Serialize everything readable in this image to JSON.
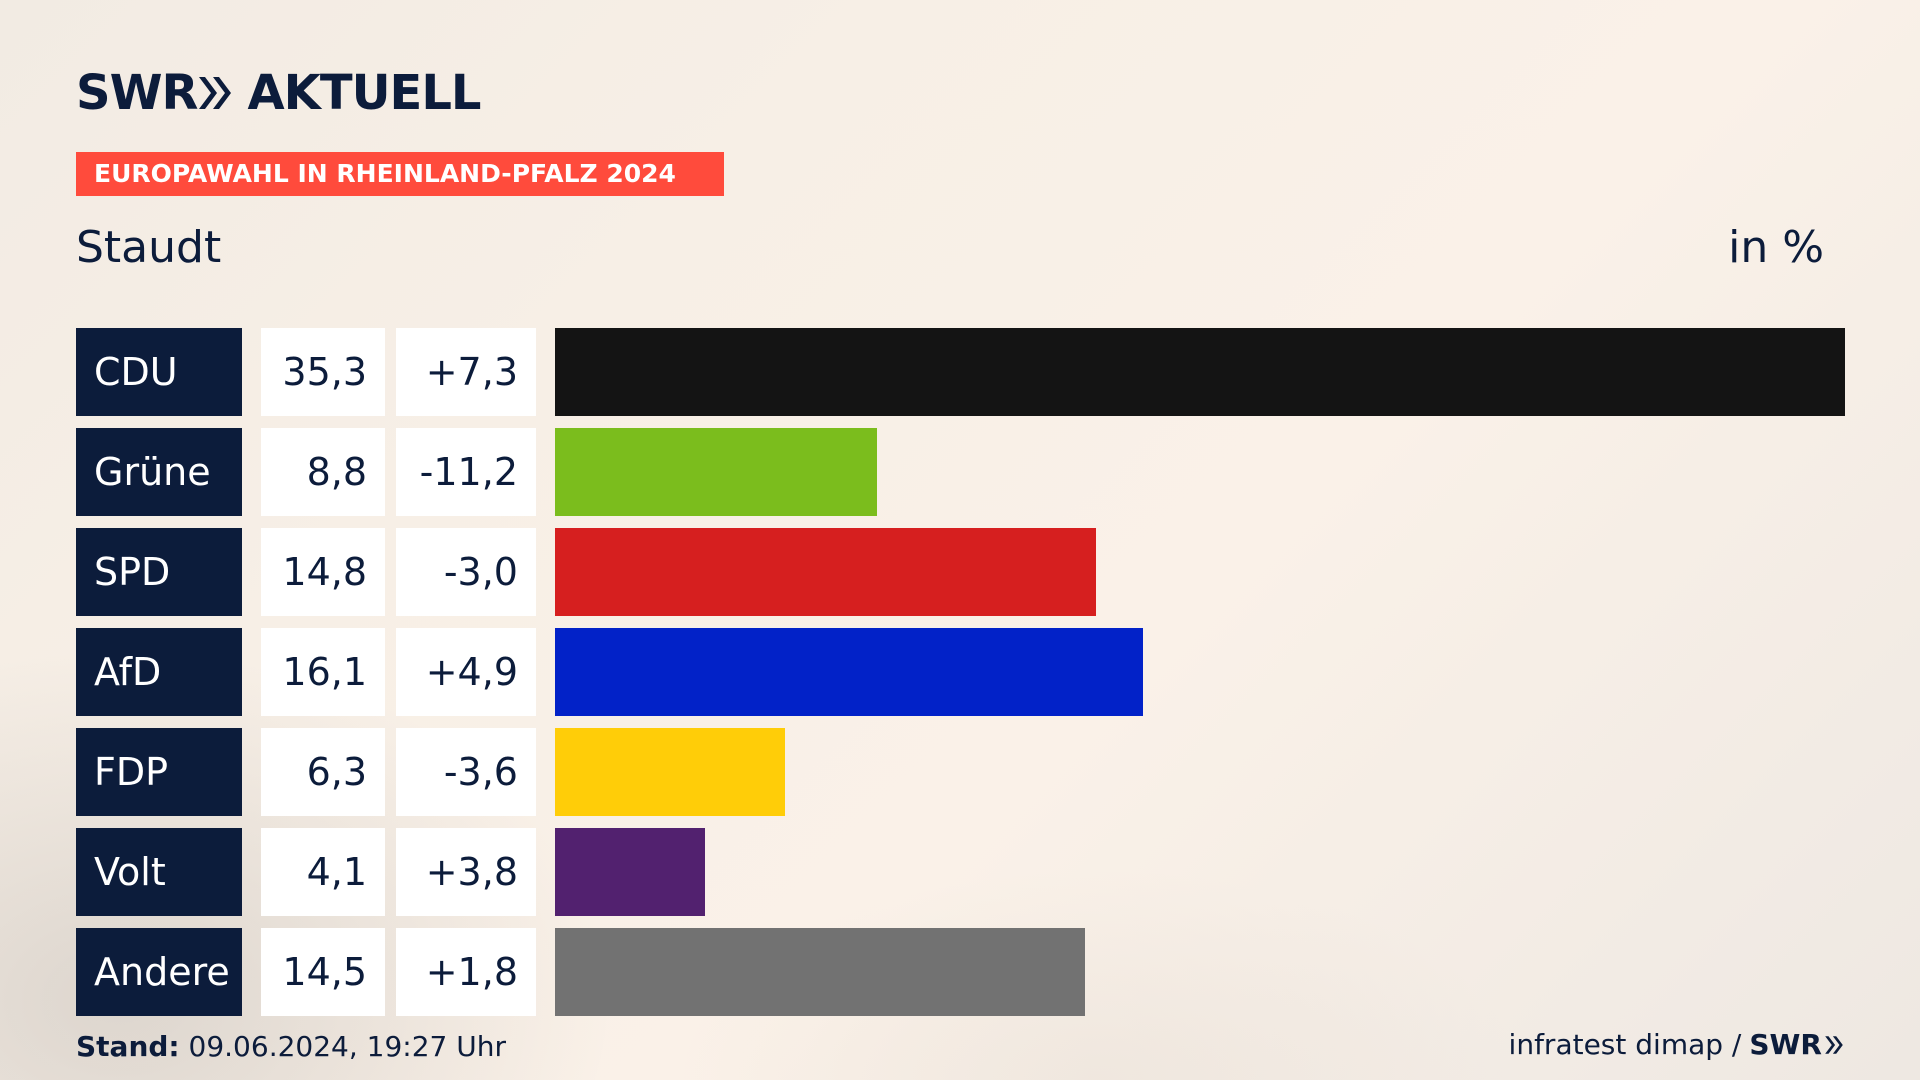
{
  "header": {
    "brand": "SWR",
    "brand_suffix": "AKTUELL",
    "banner": "EUROPAWAHL IN RHEINLAND-PFALZ 2024",
    "region": "Staudt",
    "unit": "in %"
  },
  "footer": {
    "stand_label": "Stand:",
    "stand_value": "09.06.2024, 19:27 Uhr",
    "source": "infratest dimap /",
    "source_brand": "SWR"
  },
  "colors": {
    "navy": "#0c1c3b",
    "banner": "#ff4b3c"
  },
  "chart_data": {
    "type": "bar",
    "orientation": "horizontal",
    "title": "Staudt",
    "unit": "in %",
    "categories": [
      "CDU",
      "Grüne",
      "SPD",
      "AfD",
      "FDP",
      "Volt",
      "Andere"
    ],
    "values": [
      35.3,
      8.8,
      14.8,
      16.1,
      6.3,
      4.1,
      14.5
    ],
    "values_display": [
      "35,3",
      "8,8",
      "14,8",
      "16,1",
      "6,3",
      "4,1",
      "14,5"
    ],
    "changes": [
      7.3,
      -11.2,
      -3.0,
      4.9,
      -3.6,
      3.8,
      1.8
    ],
    "changes_display": [
      "+7,3",
      "-11,2",
      "-3,0",
      "+4,9",
      "-3,6",
      "+3,8",
      "+1,8"
    ],
    "colors": [
      "#141414",
      "#7bbd1d",
      "#d61f1f",
      "#0222c8",
      "#ffcd08",
      "#52216f",
      "#727272"
    ],
    "xlim": [
      0,
      35.3
    ],
    "grid": false,
    "legend": "none"
  }
}
